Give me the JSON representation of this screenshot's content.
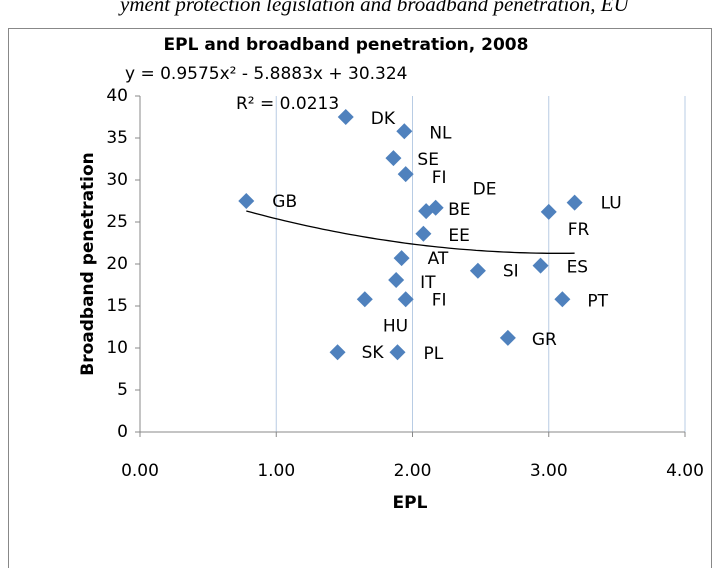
{
  "caption": "yment protection legislation and broadband penetration, EU",
  "chart_data": {
    "type": "scatter",
    "title": "EPL and broadband penetration, 2008",
    "x_label": "EPL",
    "y_label": "Broadband penetration",
    "trendline": {
      "equation": "y = 0.9575x² - 5.8883x + 30.324",
      "r_squared": "R² = 0.0213",
      "coefficients": [
        0.9575,
        -5.8883,
        30.324
      ]
    },
    "series": [
      {
        "name": "Broadband penetration",
        "color": "#4f81bd",
        "labels": [
          "DK",
          "NL",
          "SE",
          "FI",
          "GB",
          "DE",
          "BE",
          "LU",
          "FR",
          "EE",
          "AT",
          "IT",
          "SI",
          "ES",
          "FI",
          "HU",
          "PT",
          "GR",
          "SK",
          "PL"
        ],
        "x": [
          1.51,
          1.94,
          1.86,
          1.95,
          0.78,
          2.17,
          2.1,
          3.19,
          3.0,
          2.08,
          1.92,
          1.88,
          2.48,
          2.94,
          1.95,
          1.65,
          3.1,
          2.7,
          1.45,
          1.89
        ],
        "values": [
          37.5,
          35.8,
          32.6,
          30.7,
          27.5,
          26.7,
          26.3,
          27.3,
          26.2,
          23.6,
          20.7,
          18.1,
          19.2,
          19.8,
          15.8,
          15.8,
          15.8,
          11.2,
          9.5,
          9.5
        ]
      }
    ],
    "xlim": [
      0,
      4
    ],
    "ylim": [
      0,
      40
    ],
    "xticks": [
      {
        "value": 0,
        "label": "0.00"
      },
      {
        "value": 1,
        "label": "1.00"
      },
      {
        "value": 2,
        "label": "2.00"
      },
      {
        "value": 3,
        "label": "3.00"
      },
      {
        "value": 4,
        "label": "4.00"
      }
    ],
    "yticks": [
      0,
      5,
      10,
      15,
      20,
      25,
      30,
      35,
      40
    ],
    "grid": "x"
  }
}
